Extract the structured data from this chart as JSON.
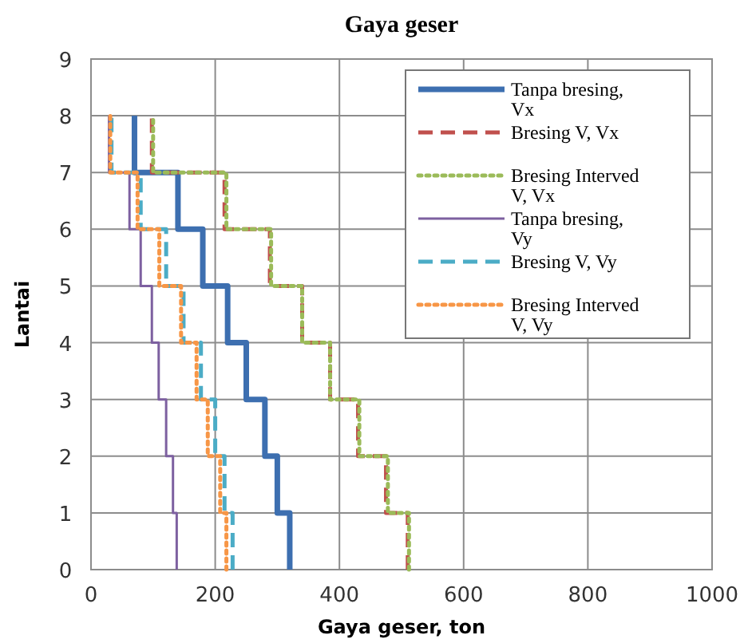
{
  "chart_data": {
    "type": "line",
    "title": "Gaya geser",
    "xlabel": "Gaya geser, ton",
    "ylabel": "Lantai",
    "xlim": [
      0,
      1000
    ],
    "xticks": [
      0,
      200,
      400,
      600,
      800,
      1000
    ],
    "ylim": [
      0,
      9
    ],
    "yticks": [
      0,
      1,
      2,
      3,
      4,
      5,
      6,
      7,
      8,
      9
    ],
    "grid": true,
    "legend": "top right",
    "series": [
      {
        "name": "Tanpa bresing, Vx",
        "color": "#3d6fb0",
        "line_style": "solid",
        "x": [
          320,
          320,
          300,
          300,
          280,
          280,
          250,
          250,
          220,
          220,
          180,
          180,
          140,
          140,
          70,
          70
        ],
        "values": [
          0,
          1,
          1,
          2,
          2,
          3,
          3,
          4,
          4,
          5,
          5,
          6,
          6,
          7,
          7,
          8
        ]
      },
      {
        "name": "Bresing V, Vx",
        "color": "#c0504d",
        "line_style": "dashed",
        "x": [
          510,
          510,
          475,
          475,
          430,
          430,
          385,
          385,
          340,
          340,
          288,
          288,
          215,
          215,
          98,
          98
        ],
        "values": [
          0,
          1,
          1,
          2,
          2,
          3,
          3,
          4,
          4,
          5,
          5,
          6,
          6,
          7,
          7,
          8
        ]
      },
      {
        "name": "Bresing Interved V, Vx",
        "color": "#9bbb59",
        "line_style": "dotted",
        "x": [
          512,
          512,
          478,
          478,
          432,
          432,
          385,
          385,
          340,
          340,
          290,
          290,
          218,
          218,
          100,
          100
        ],
        "values": [
          0,
          1,
          1,
          2,
          2,
          3,
          3,
          4,
          4,
          5,
          5,
          6,
          6,
          7,
          7,
          8
        ]
      },
      {
        "name": "Tanpa bresing, Vy",
        "color": "#7d60a0",
        "line_style": "solid",
        "x": [
          138,
          138,
          132,
          132,
          121,
          121,
          109,
          109,
          98,
          98,
          80,
          80,
          62,
          62,
          29,
          29
        ],
        "values": [
          0,
          1,
          1,
          2,
          2,
          3,
          3,
          4,
          4,
          5,
          5,
          6,
          6,
          7,
          7,
          8
        ]
      },
      {
        "name": "Bresing V, Vy",
        "color": "#4bacc6",
        "line_style": "dashed",
        "x": [
          228,
          228,
          215,
          215,
          200,
          200,
          177,
          177,
          149,
          149,
          121,
          121,
          80,
          80,
          33,
          33
        ],
        "values": [
          0,
          1,
          1,
          2,
          2,
          3,
          3,
          4,
          4,
          5,
          5,
          6,
          6,
          7,
          7,
          8
        ]
      },
      {
        "name": "Bresing Interved V, Vy",
        "color": "#f79646",
        "line_style": "dotted",
        "x": [
          218,
          218,
          208,
          208,
          188,
          188,
          170,
          170,
          145,
          145,
          110,
          110,
          75,
          75,
          31,
          31
        ],
        "values": [
          0,
          1,
          1,
          2,
          2,
          3,
          3,
          4,
          4,
          5,
          5,
          6,
          6,
          7,
          7,
          8
        ]
      }
    ]
  }
}
